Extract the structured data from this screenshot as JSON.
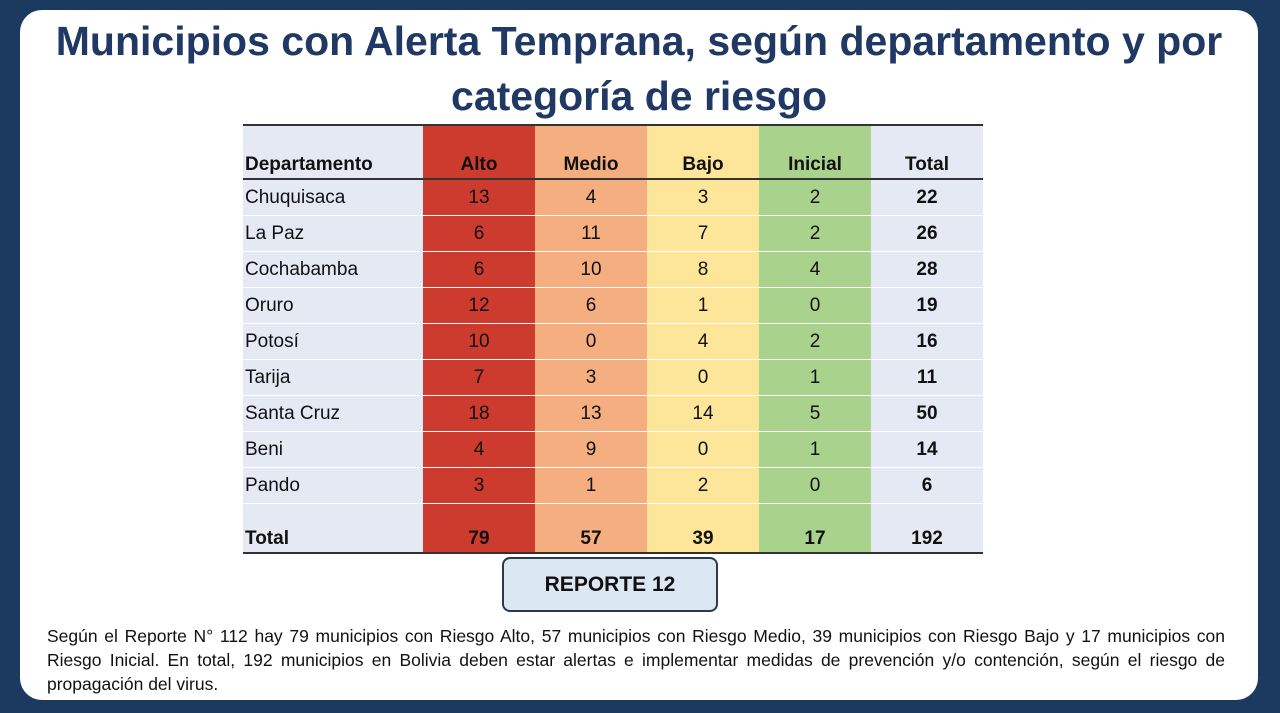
{
  "title": "Municipios con Alerta Temprana, según departamento y por categoría de riesgo",
  "colors": {
    "alto": "#cc3b2d",
    "medio": "#f4ae80",
    "bajo": "#fde699",
    "inicial": "#a9d38c",
    "background": "#1c3a60",
    "title": "#1f3864"
  },
  "table": {
    "headers": [
      "Departamento",
      "Alto",
      "Medio",
      "Bajo",
      "Inicial",
      "Total"
    ],
    "rows": [
      [
        "Chuquisaca",
        "13",
        "4",
        "3",
        "2",
        "22"
      ],
      [
        "La Paz",
        "6",
        "11",
        "7",
        "2",
        "26"
      ],
      [
        "Cochabamba",
        "6",
        "10",
        "8",
        "4",
        "28"
      ],
      [
        "Oruro",
        "12",
        "6",
        "1",
        "0",
        "19"
      ],
      [
        "Potosí",
        "10",
        "0",
        "4",
        "2",
        "16"
      ],
      [
        "Tarija",
        "7",
        "3",
        "0",
        "1",
        "11"
      ],
      [
        "Santa Cruz",
        "18",
        "13",
        "14",
        "5",
        "50"
      ],
      [
        "Beni",
        "4",
        "9",
        "0",
        "1",
        "14"
      ],
      [
        "Pando",
        "3",
        "1",
        "2",
        "0",
        "6"
      ]
    ],
    "total": [
      "Total",
      "79",
      "57",
      "39",
      "17",
      "192"
    ]
  },
  "button_label": "REPORTE 12",
  "paragraph": "Según el Reporte N° 112 hay 79 municipios con Riesgo Alto, 57 municipios con Riesgo Medio, 39 municipios con Riesgo Bajo y 17 municipios con Riesgo Inicial. En total, 192 municipios en Bolivia deben estar alertas e implementar medidas de prevención y/o contención, según el riesgo de propagación del virus."
}
